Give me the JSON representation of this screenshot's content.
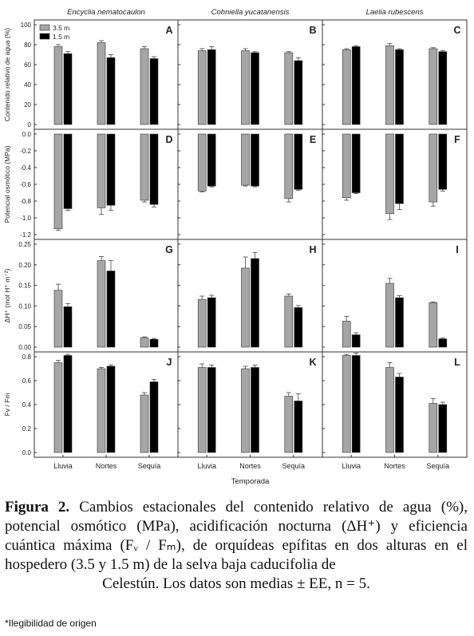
{
  "figure": {
    "species": [
      "Encyclia nematocaulon",
      "Cohniella yucatanensis",
      "Laelia rubescens"
    ],
    "legend": [
      {
        "label": "3.5 m",
        "color": "#a6a6a6"
      },
      {
        "label": "1.5 m",
        "color": "#000000"
      }
    ],
    "xlabel": "Temporada",
    "colors": {
      "bar_light": "#a6a6a6",
      "bar_dark": "#000000",
      "axis": "#333333"
    }
  },
  "chart_data": [
    {
      "type": "bar",
      "panel": "A",
      "row": 0,
      "col": 0,
      "categories": [
        "Lluvia",
        "Nortes",
        "Sequía"
      ],
      "ylabel": "Contenido relativo de agua (%)",
      "ylim": [
        0,
        100
      ],
      "ticks": [
        0,
        20,
        40,
        60,
        80,
        100
      ],
      "series": [
        {
          "name": "3.5 m",
          "values": [
            78,
            82,
            76
          ],
          "errors": [
            2,
            2,
            2
          ]
        },
        {
          "name": "1.5 m",
          "values": [
            71,
            67,
            66
          ],
          "errors": [
            2,
            3,
            2
          ]
        }
      ]
    },
    {
      "type": "bar",
      "panel": "B",
      "row": 0,
      "col": 1,
      "categories": [
        "Lluvia",
        "Nortes",
        "Sequía"
      ],
      "ylim": [
        0,
        100
      ],
      "ticks": [
        0,
        20,
        40,
        60,
        80,
        100
      ],
      "series": [
        {
          "name": "3.5 m",
          "values": [
            74,
            74,
            72
          ],
          "errors": [
            2,
            2,
            1
          ]
        },
        {
          "name": "1.5 m",
          "values": [
            75,
            72,
            64
          ],
          "errors": [
            3,
            1,
            3
          ]
        }
      ]
    },
    {
      "type": "bar",
      "panel": "C",
      "row": 0,
      "col": 2,
      "categories": [
        "Lluvia",
        "Nortes",
        "Sequía"
      ],
      "ylim": [
        0,
        100
      ],
      "ticks": [
        0,
        20,
        40,
        60,
        80,
        100
      ],
      "series": [
        {
          "name": "3.5 m",
          "values": [
            75,
            79,
            76
          ],
          "errors": [
            1,
            2,
            1
          ]
        },
        {
          "name": "1.5 m",
          "values": [
            78,
            75,
            73
          ],
          "errors": [
            1,
            1,
            1
          ]
        }
      ]
    },
    {
      "type": "bar",
      "panel": "D",
      "row": 1,
      "col": 0,
      "categories": [
        "Lluvia",
        "Nortes",
        "Sequía"
      ],
      "ylabel": "Potencial osmótico (MPa)",
      "ylim": [
        -1.2,
        0
      ],
      "ticks": [
        0.0,
        -0.2,
        -0.4,
        -0.6,
        -0.8,
        -1.0,
        -1.2
      ],
      "series": [
        {
          "name": "3.5 m",
          "values": [
            -1.13,
            -0.88,
            -0.79
          ],
          "errors": [
            0.02,
            0.08,
            0.02
          ]
        },
        {
          "name": "1.5 m",
          "values": [
            -0.89,
            -0.85,
            -0.84
          ],
          "errors": [
            0.02,
            0.06,
            0.03
          ]
        }
      ]
    },
    {
      "type": "bar",
      "panel": "E",
      "row": 1,
      "col": 1,
      "categories": [
        "Lluvia",
        "Nortes",
        "Sequía"
      ],
      "ylim": [
        -1.2,
        0
      ],
      "ticks": [
        0.0,
        -0.2,
        -0.4,
        -0.6,
        -0.8,
        -1.0,
        -1.2
      ],
      "series": [
        {
          "name": "3.5 m",
          "values": [
            -0.68,
            -0.61,
            -0.77
          ],
          "errors": [
            0.01,
            0.01,
            0.04
          ]
        },
        {
          "name": "1.5 m",
          "values": [
            -0.62,
            -0.62,
            -0.66
          ],
          "errors": [
            0.01,
            0.01,
            0.01
          ]
        }
      ]
    },
    {
      "type": "bar",
      "panel": "F",
      "row": 1,
      "col": 2,
      "categories": [
        "Lluvia",
        "Nortes",
        "Sequía"
      ],
      "ylim": [
        -1.2,
        0
      ],
      "ticks": [
        0.0,
        -0.2,
        -0.4,
        -0.6,
        -0.8,
        -1.0,
        -1.2
      ],
      "series": [
        {
          "name": "3.5 m",
          "values": [
            -0.76,
            -0.95,
            -0.81
          ],
          "errors": [
            0.03,
            0.07,
            0.05
          ]
        },
        {
          "name": "1.5 m",
          "values": [
            -0.7,
            -0.83,
            -0.66
          ],
          "errors": [
            0.01,
            0.07,
            0.02
          ]
        }
      ]
    },
    {
      "type": "bar",
      "panel": "G",
      "row": 2,
      "col": 0,
      "categories": [
        "Lluvia",
        "Nortes",
        "Sequía"
      ],
      "ylabel": "ΔH⁺ (mol H⁺ m⁻²)",
      "ylim": [
        0,
        0.25
      ],
      "ticks": [
        0.0,
        0.05,
        0.1,
        0.15,
        0.2,
        0.25
      ],
      "series": [
        {
          "name": "3.5 m",
          "values": [
            0.138,
            0.21,
            0.023
          ],
          "errors": [
            0.015,
            0.01,
            0.002
          ]
        },
        {
          "name": "1.5 m",
          "values": [
            0.098,
            0.185,
            0.019
          ],
          "errors": [
            0.008,
            0.025,
            0.002
          ]
        }
      ]
    },
    {
      "type": "bar",
      "panel": "H",
      "row": 2,
      "col": 1,
      "categories": [
        "Lluvia",
        "Nortes",
        "Sequía"
      ],
      "ylim": [
        0,
        0.25
      ],
      "ticks": [
        0.0,
        0.05,
        0.1,
        0.15,
        0.2,
        0.25
      ],
      "series": [
        {
          "name": "3.5 m",
          "values": [
            0.116,
            0.192,
            0.124
          ],
          "errors": [
            0.008,
            0.027,
            0.005
          ]
        },
        {
          "name": "1.5 m",
          "values": [
            0.12,
            0.215,
            0.096
          ],
          "errors": [
            0.006,
            0.015,
            0.005
          ]
        }
      ]
    },
    {
      "type": "bar",
      "panel": "I",
      "row": 2,
      "col": 2,
      "categories": [
        "Lluvia",
        "Nortes",
        "Sequía"
      ],
      "ylim": [
        0,
        0.25
      ],
      "ticks": [
        0.0,
        0.05,
        0.1,
        0.15,
        0.2,
        0.25
      ],
      "series": [
        {
          "name": "3.5 m",
          "values": [
            0.063,
            0.155,
            0.108
          ],
          "errors": [
            0.012,
            0.012,
            0.002
          ]
        },
        {
          "name": "1.5 m",
          "values": [
            0.03,
            0.12,
            0.02
          ],
          "errors": [
            0.005,
            0.005,
            0.002
          ]
        }
      ]
    },
    {
      "type": "bar",
      "panel": "J",
      "row": 3,
      "col": 0,
      "categories": [
        "Lluvia",
        "Nortes",
        "Sequía"
      ],
      "ylabel": "Fv / Fm",
      "ylim": [
        0,
        0.8
      ],
      "ticks": [
        0.0,
        0.2,
        0.4,
        0.6,
        0.8
      ],
      "series": [
        {
          "name": "3.5 m",
          "values": [
            0.75,
            0.7,
            0.48
          ],
          "errors": [
            0.02,
            0.01,
            0.02
          ]
        },
        {
          "name": "1.5 m",
          "values": [
            0.81,
            0.72,
            0.59
          ],
          "errors": [
            0.01,
            0.01,
            0.02
          ]
        }
      ]
    },
    {
      "type": "bar",
      "panel": "K",
      "row": 3,
      "col": 1,
      "categories": [
        "Lluvia",
        "Nortes",
        "Sequía"
      ],
      "ylim": [
        0,
        0.8
      ],
      "ticks": [
        0.0,
        0.2,
        0.4,
        0.6,
        0.8
      ],
      "series": [
        {
          "name": "3.5 m",
          "values": [
            0.71,
            0.7,
            0.47
          ],
          "errors": [
            0.03,
            0.02,
            0.03
          ]
        },
        {
          "name": "1.5 m",
          "values": [
            0.71,
            0.71,
            0.43
          ],
          "errors": [
            0.02,
            0.02,
            0.06
          ]
        }
      ]
    },
    {
      "type": "bar",
      "panel": "L",
      "row": 3,
      "col": 2,
      "categories": [
        "Lluvia",
        "Nortes",
        "Sequía"
      ],
      "ylim": [
        0,
        0.8
      ],
      "ticks": [
        0.0,
        0.2,
        0.4,
        0.6,
        0.8
      ],
      "series": [
        {
          "name": "3.5 m",
          "values": [
            0.81,
            0.71,
            0.41
          ],
          "errors": [
            0.01,
            0.04,
            0.04
          ]
        },
        {
          "name": "1.5 m",
          "values": [
            0.81,
            0.63,
            0.4
          ],
          "errors": [
            0.02,
            0.03,
            0.02
          ]
        }
      ]
    }
  ],
  "caption": {
    "label": "Figura 2.",
    "text": "Cambios estacionales del contenido relativo de agua (%), potencial osmótico (MPa), acidificación nocturna (ΔH⁺) y eficiencia cuántica máxima (Fᵥ / Fₘ), de orquídeas epífitas en dos alturas en el hospedero (3.5 y 1.5 m) de la selva baja caducifolia de",
    "last_line": "Celestún. Los datos son medias ± EE, n = 5."
  },
  "footnote": "*Ilegibilidad de origen"
}
